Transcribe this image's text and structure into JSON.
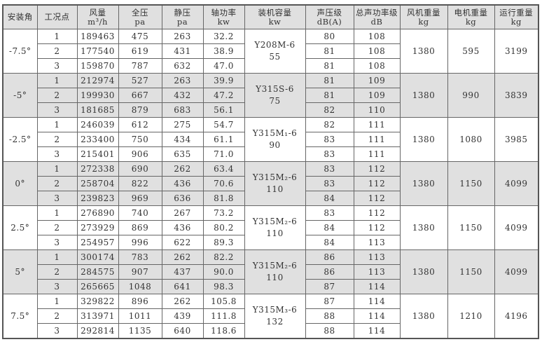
{
  "header": [
    {
      "l1": "安装角",
      "l2": ""
    },
    {
      "l1": "工况点",
      "l2": ""
    },
    {
      "l1": "风量",
      "l2": "m³/h"
    },
    {
      "l1": "全压",
      "l2": "pa"
    },
    {
      "l1": "静压",
      "l2": "pa"
    },
    {
      "l1": "轴功率",
      "l2": "kw"
    },
    {
      "l1": "装机容量",
      "l2": "kw"
    },
    {
      "l1": "声压级",
      "l2": "dB(A)"
    },
    {
      "l1": "总声功率级",
      "l2": "dB"
    },
    {
      "l1": "风机重量",
      "l2": "kg"
    },
    {
      "l1": "电机重量",
      "l2": "kg"
    },
    {
      "l1": "运行重量",
      "l2": "kg"
    }
  ],
  "groups": [
    {
      "angle": "-7.5°",
      "motor_model": "Y208M-6",
      "motor_kw": "55",
      "fan_weight": "1380",
      "motor_weight": "595",
      "run_weight": "3199",
      "shaded": false,
      "rows": [
        [
          "1",
          "189463",
          "475",
          "263",
          "32.2",
          "80",
          "108"
        ],
        [
          "2",
          "177540",
          "619",
          "431",
          "38.9",
          "81",
          "108"
        ],
        [
          "3",
          "159870",
          "787",
          "632",
          "47.0",
          "81",
          "108"
        ]
      ]
    },
    {
      "angle": "-5°",
      "motor_model": "Y315S-6",
      "motor_kw": "75",
      "fan_weight": "1380",
      "motor_weight": "990",
      "run_weight": "3839",
      "shaded": true,
      "rows": [
        [
          "1",
          "212974",
          "527",
          "263",
          "39.9",
          "81",
          "109"
        ],
        [
          "2",
          "199930",
          "667",
          "432",
          "47.2",
          "81",
          "109"
        ],
        [
          "3",
          "181685",
          "879",
          "683",
          "56.1",
          "82",
          "110"
        ]
      ]
    },
    {
      "angle": "-2.5°",
      "motor_model": "Y315M₁-6",
      "motor_kw": "90",
      "fan_weight": "1380",
      "motor_weight": "1080",
      "run_weight": "3985",
      "shaded": false,
      "rows": [
        [
          "1",
          "246039",
          "612",
          "275",
          "54.7",
          "82",
          "111"
        ],
        [
          "2",
          "233400",
          "750",
          "434",
          "61.1",
          "83",
          "111"
        ],
        [
          "3",
          "215401",
          "906",
          "635",
          "71.0",
          "83",
          "111"
        ]
      ]
    },
    {
      "angle": "0°",
      "motor_model": "Y315M₂-6",
      "motor_kw": "110",
      "fan_weight": "1380",
      "motor_weight": "1150",
      "run_weight": "4099",
      "shaded": true,
      "rows": [
        [
          "1",
          "272338",
          "690",
          "262",
          "63.4",
          "83",
          "112"
        ],
        [
          "2",
          "258704",
          "822",
          "436",
          "70.6",
          "83",
          "112"
        ],
        [
          "3",
          "239823",
          "969",
          "636",
          "81.8",
          "84",
          "112"
        ]
      ]
    },
    {
      "angle": "2.5°",
      "motor_model": "Y315M₂-6",
      "motor_kw": "110",
      "fan_weight": "1380",
      "motor_weight": "1150",
      "run_weight": "4099",
      "shaded": false,
      "rows": [
        [
          "1",
          "276890",
          "740",
          "267",
          "73.2",
          "83",
          "112"
        ],
        [
          "2",
          "273929",
          "869",
          "436",
          "80.2",
          "84",
          "112"
        ],
        [
          "3",
          "254957",
          "996",
          "622",
          "89.3",
          "84",
          "113"
        ]
      ]
    },
    {
      "angle": "5°",
      "motor_model": "Y315M₂-6",
      "motor_kw": "110",
      "fan_weight": "1380",
      "motor_weight": "1150",
      "run_weight": "4099",
      "shaded": true,
      "rows": [
        [
          "1",
          "300174",
          "783",
          "262",
          "82.2",
          "86",
          "113"
        ],
        [
          "2",
          "284575",
          "907",
          "437",
          "90.0",
          "86",
          "113"
        ],
        [
          "3",
          "265665",
          "1048",
          "641",
          "98.3",
          "87",
          "114"
        ]
      ]
    },
    {
      "angle": "7.5°",
      "motor_model": "Y315M₃-6",
      "motor_kw": "132",
      "fan_weight": "1380",
      "motor_weight": "1210",
      "run_weight": "4196",
      "shaded": false,
      "rows": [
        [
          "1",
          "329822",
          "896",
          "262",
          "105.8",
          "87",
          "114"
        ],
        [
          "2",
          "313971",
          "1011",
          "439",
          "111.8",
          "88",
          "114"
        ],
        [
          "3",
          "292814",
          "1135",
          "640",
          "118.6",
          "88",
          "114"
        ]
      ]
    }
  ],
  "colors": {
    "header_bg": "#e0e0e0",
    "shaded_bg": "#e0e0e0",
    "border": "#666666"
  }
}
